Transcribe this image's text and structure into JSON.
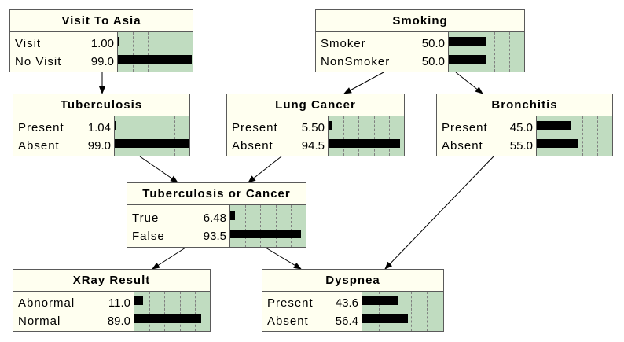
{
  "colors": {
    "node_background": "#fffff0",
    "bar_area_background": "#c0dcc0",
    "bar_color": "#000000",
    "border_color": "#5a5a5a",
    "edge_color": "#000000"
  },
  "nodes": {
    "visit_to_asia": {
      "title": "Visit To Asia",
      "states": [
        {
          "label": "Visit",
          "value": "1.00",
          "probability": 1.0
        },
        {
          "label": "No Visit",
          "value": "99.0",
          "probability": 99.0
        }
      ]
    },
    "smoking": {
      "title": "Smoking",
      "states": [
        {
          "label": "Smoker",
          "value": "50.0",
          "probability": 50.0
        },
        {
          "label": "NonSmoker",
          "value": "50.0",
          "probability": 50.0
        }
      ]
    },
    "tuberculosis": {
      "title": "Tuberculosis",
      "states": [
        {
          "label": "Present",
          "value": "1.04",
          "probability": 1.04
        },
        {
          "label": "Absent",
          "value": "99.0",
          "probability": 99.0
        }
      ]
    },
    "lung_cancer": {
      "title": "Lung Cancer",
      "states": [
        {
          "label": "Present",
          "value": "5.50",
          "probability": 5.5
        },
        {
          "label": "Absent",
          "value": "94.5",
          "probability": 94.5
        }
      ]
    },
    "bronchitis": {
      "title": "Bronchitis",
      "states": [
        {
          "label": "Present",
          "value": "45.0",
          "probability": 45.0
        },
        {
          "label": "Absent",
          "value": "55.0",
          "probability": 55.0
        }
      ]
    },
    "tb_or_cancer": {
      "title": "Tuberculosis or Cancer",
      "states": [
        {
          "label": "True",
          "value": "6.48",
          "probability": 6.48
        },
        {
          "label": "False",
          "value": "93.5",
          "probability": 93.5
        }
      ]
    },
    "xray_result": {
      "title": "XRay Result",
      "states": [
        {
          "label": "Abnormal",
          "value": "11.0",
          "probability": 11.0
        },
        {
          "label": "Normal",
          "value": "89.0",
          "probability": 89.0
        }
      ]
    },
    "dyspnea": {
      "title": "Dyspnea",
      "states": [
        {
          "label": "Present",
          "value": "43.6",
          "probability": 43.6
        },
        {
          "label": "Absent",
          "value": "56.4",
          "probability": 56.4
        }
      ]
    }
  },
  "edges": [
    {
      "from": "visit_to_asia",
      "to": "tuberculosis"
    },
    {
      "from": "smoking",
      "to": "lung_cancer"
    },
    {
      "from": "smoking",
      "to": "bronchitis"
    },
    {
      "from": "tuberculosis",
      "to": "tb_or_cancer"
    },
    {
      "from": "lung_cancer",
      "to": "tb_or_cancer"
    },
    {
      "from": "tb_or_cancer",
      "to": "xray_result"
    },
    {
      "from": "tb_or_cancer",
      "to": "dyspnea"
    },
    {
      "from": "bronchitis",
      "to": "dyspnea"
    }
  ]
}
